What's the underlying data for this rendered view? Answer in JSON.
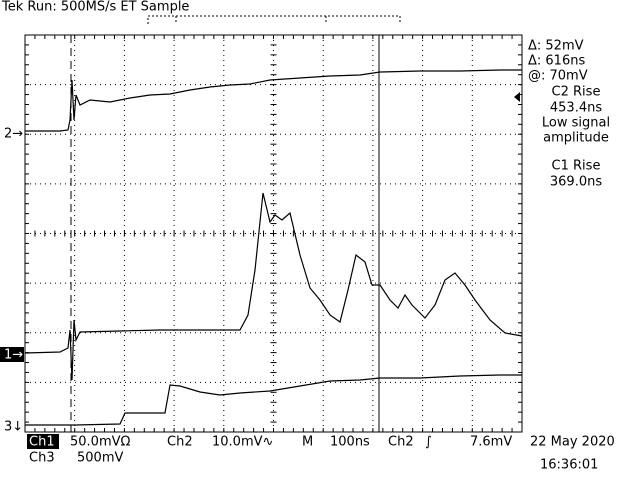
{
  "header": {
    "title": "Tek Run: 500MS/s ET Sample"
  },
  "readout": [
    "Δ: 52mV",
    "Δ: 616ns",
    "@: 70mV",
    "C2 Rise",
    "453.4ns",
    "Low signal",
    "amplitude",
    "C1 Rise",
    "369.0ns"
  ],
  "markers": {
    "ch2": "2→",
    "ch1": "1→",
    "ch3": "3↓"
  },
  "status": {
    "ch1": "Ch1",
    "ch1_scale": "50.0mVΩ",
    "ch2": "Ch2",
    "ch2_scale": "10.0mV∿",
    "m": "M",
    "timebase": "100ns",
    "trig_src": "Ch2",
    "trig_slope": "∫",
    "trig_level": "7.6mV",
    "date": "22 May 2020",
    "ch3": "Ch3",
    "ch3_scale": "500mV",
    "time": "16:36:01"
  }
}
